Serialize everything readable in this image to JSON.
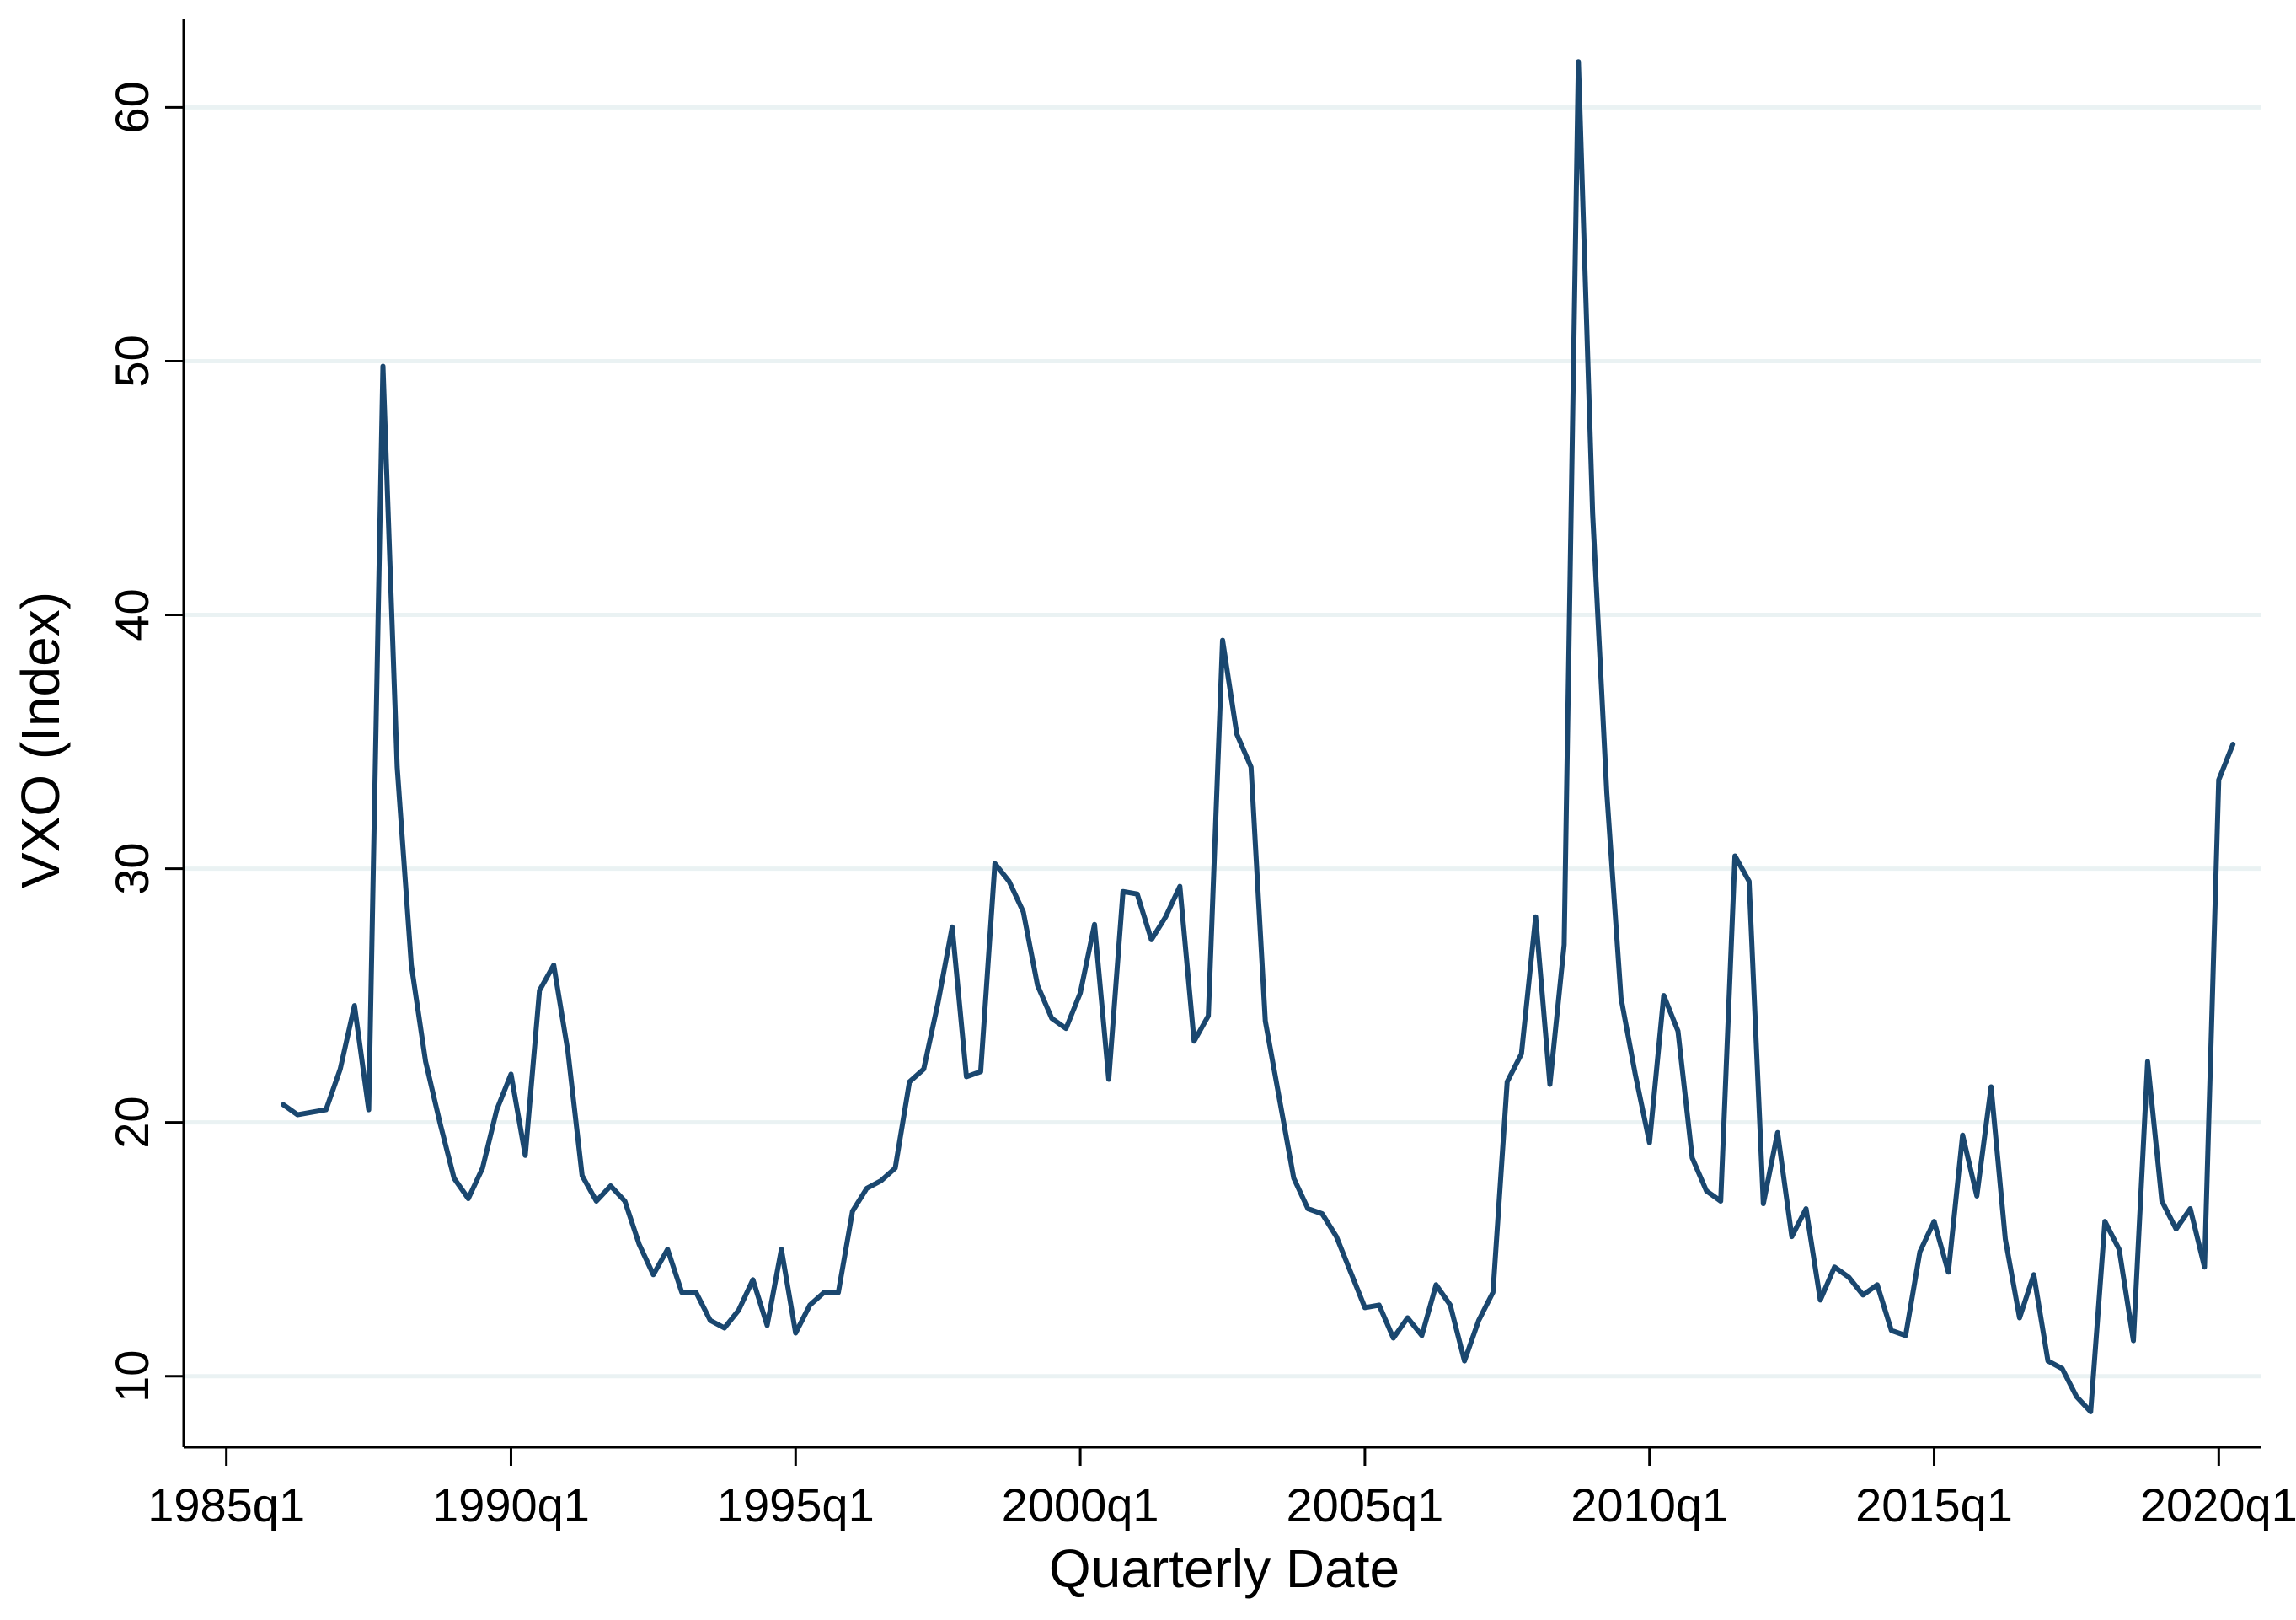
{
  "chart_data": {
    "type": "line",
    "title": "",
    "xlabel": "Quarterly Date",
    "ylabel": "VXO (Index)",
    "x_ticks": [
      "1985q1",
      "1990q1",
      "1995q1",
      "2000q1",
      "2005q1",
      "2010q1",
      "2015q1",
      "2020q1"
    ],
    "y_ticks": [
      10,
      20,
      30,
      40,
      50,
      60
    ],
    "xlim": [
      "1984q2",
      "2020q4"
    ],
    "ylim": [
      7.2,
      63.5
    ],
    "grid": "horizontal",
    "legend": "none",
    "line_color": "#1a476f",
    "grid_color": "#eaf2f3",
    "series": [
      {
        "x": [
          "1986q1",
          "1986q2",
          "1986q3",
          "1986q4",
          "1987q1",
          "1987q2",
          "1987q3",
          "1987q4",
          "1988q1",
          "1988q2",
          "1988q3",
          "1988q4",
          "1989q1",
          "1989q2",
          "1989q3",
          "1989q4",
          "1990q1",
          "1990q2",
          "1990q3",
          "1990q4",
          "1991q1",
          "1991q2",
          "1991q3",
          "1991q4",
          "1992q1",
          "1992q2",
          "1992q3",
          "1992q4",
          "1993q1",
          "1993q2",
          "1993q3",
          "1993q4",
          "1994q1",
          "1994q2",
          "1994q3",
          "1994q4",
          "1995q1",
          "1995q2",
          "1995q3",
          "1995q4",
          "1996q1",
          "1996q2",
          "1996q3",
          "1996q4",
          "1997q1",
          "1997q2",
          "1997q3",
          "1997q4",
          "1998q1",
          "1998q2",
          "1998q3",
          "1998q4",
          "1999q1",
          "1999q2",
          "1999q3",
          "1999q4",
          "2000q1",
          "2000q2",
          "2000q3",
          "2000q4",
          "2001q1",
          "2001q2",
          "2001q3",
          "2001q4",
          "2002q1",
          "2002q2",
          "2002q3",
          "2002q4",
          "2003q1",
          "2003q2",
          "2003q3",
          "2003q4",
          "2004q1",
          "2004q2",
          "2004q3",
          "2004q4",
          "2005q1",
          "2005q2",
          "2005q3",
          "2005q4",
          "2006q1",
          "2006q2",
          "2006q3",
          "2006q4",
          "2007q1",
          "2007q2",
          "2007q3",
          "2007q4",
          "2008q1",
          "2008q2",
          "2008q3",
          "2008q4",
          "2009q1",
          "2009q2",
          "2009q3",
          "2009q4",
          "2010q1",
          "2010q2",
          "2010q3",
          "2010q4",
          "2011q1",
          "2011q2",
          "2011q3",
          "2011q4",
          "2012q1",
          "2012q2",
          "2012q3",
          "2012q4",
          "2013q1",
          "2013q2",
          "2013q3",
          "2013q4",
          "2014q1",
          "2014q2",
          "2014q3",
          "2014q4",
          "2015q1",
          "2015q2",
          "2015q3",
          "2015q4",
          "2016q1",
          "2016q2",
          "2016q3",
          "2016q4",
          "2017q1",
          "2017q2",
          "2017q3",
          "2017q4",
          "2018q1",
          "2018q2",
          "2018q3",
          "2018q4",
          "2019q1",
          "2019q2",
          "2019q3",
          "2019q4",
          "2020q1",
          "2020q2"
        ],
        "values": [
          20.7,
          20.3,
          20.4,
          20.5,
          22.1,
          24.6,
          20.5,
          49.8,
          34.0,
          26.2,
          22.4,
          20.0,
          17.8,
          17.0,
          18.2,
          20.5,
          21.9,
          18.7,
          25.2,
          26.2,
          22.8,
          17.9,
          16.9,
          17.5,
          16.9,
          15.2,
          14.0,
          15.0,
          13.3,
          13.3,
          12.2,
          11.9,
          12.6,
          13.8,
          12.0,
          15.0,
          11.7,
          12.8,
          13.3,
          13.3,
          16.5,
          17.4,
          17.7,
          18.2,
          21.6,
          22.1,
          24.7,
          27.7,
          21.8,
          22.0,
          30.2,
          29.5,
          28.3,
          25.4,
          24.1,
          23.7,
          25.1,
          27.8,
          21.7,
          29.1,
          29.0,
          27.2,
          28.1,
          29.3,
          23.2,
          24.2,
          39.0,
          35.3,
          34.0,
          24.0,
          20.9,
          17.8,
          16.6,
          16.4,
          15.5,
          14.1,
          12.7,
          12.8,
          11.5,
          12.3,
          11.6,
          13.6,
          12.8,
          10.6,
          12.2,
          13.3,
          21.6,
          22.7,
          28.1,
          21.5,
          27.0,
          61.8,
          44.0,
          33.0,
          24.9,
          21.9,
          19.2,
          25.0,
          23.6,
          18.6,
          17.3,
          16.9,
          30.5,
          29.5,
          16.8,
          19.6,
          15.5,
          16.6,
          13.0,
          14.3,
          13.9,
          13.2,
          13.6,
          11.8,
          11.6,
          14.9,
          16.1,
          14.1,
          19.5,
          17.1,
          21.4,
          15.4,
          12.3,
          14.0,
          10.6,
          10.3,
          9.2,
          8.6,
          16.1,
          15.0,
          11.4,
          22.4,
          16.9,
          15.8,
          16.6,
          14.3,
          33.5,
          34.9
        ]
      }
    ]
  }
}
